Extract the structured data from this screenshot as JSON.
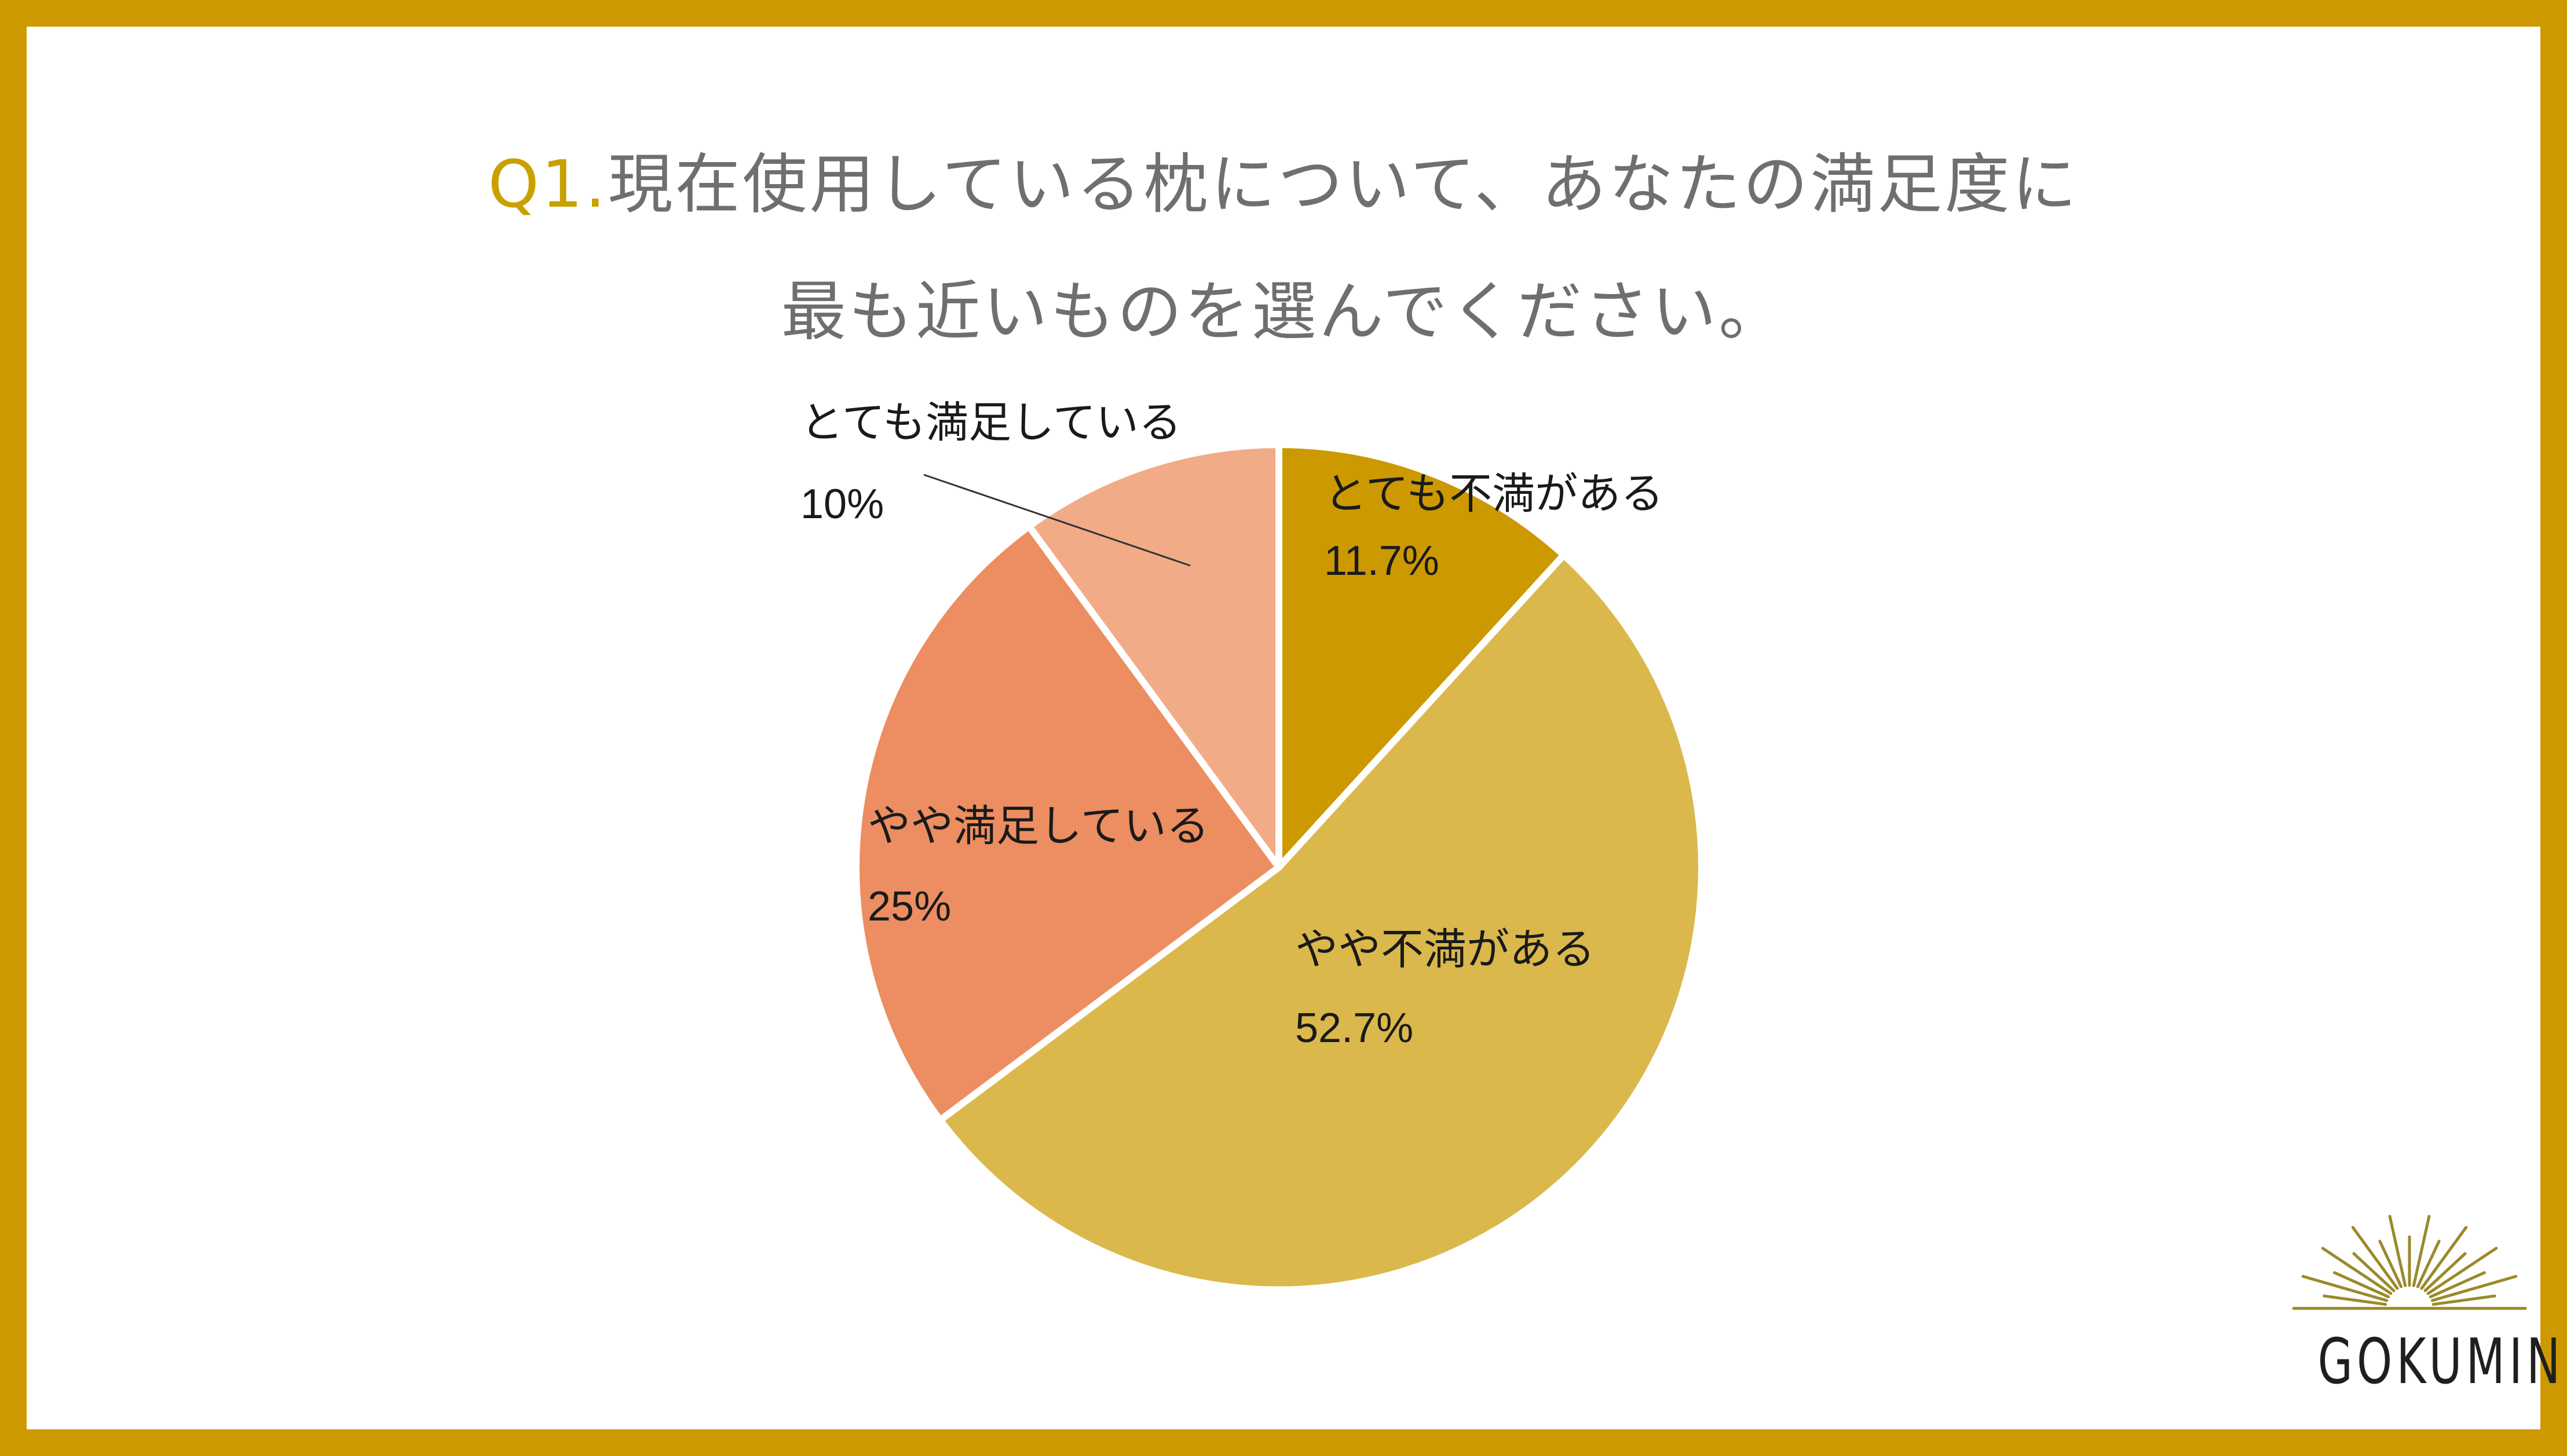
{
  "title": {
    "prefix": "Q1.",
    "line1": "現在使用している枕について、あなたの満足度に",
    "line2": "最も近いものを選んでください。"
  },
  "colors": {
    "frame": "#cc9900",
    "title_prefix": "#c9a000",
    "title_text": "#6f6f6f"
  },
  "chart_data": {
    "type": "pie",
    "title": "Q1.現在使用している枕について、あなたの満足度に最も近いものを選んでください。",
    "slices": [
      {
        "label": "とても不満がある",
        "value": 11.7,
        "value_label": "11.7%",
        "color": "#cc9900"
      },
      {
        "label": "やや不満がある",
        "value": 52.7,
        "value_label": "52.7%",
        "color": "#dbb84c"
      },
      {
        "label": "やや満足している",
        "value": 25,
        "value_label": "25%",
        "color": "#ec8e61"
      },
      {
        "label": "とても満足している",
        "value": 10,
        "value_label": "10%",
        "color": "#f2ab87"
      }
    ],
    "start": "12 o'clock",
    "direction": "clockwise"
  },
  "logo": {
    "text": "GOKUMIN",
    "icon": "sunburst-icon"
  }
}
